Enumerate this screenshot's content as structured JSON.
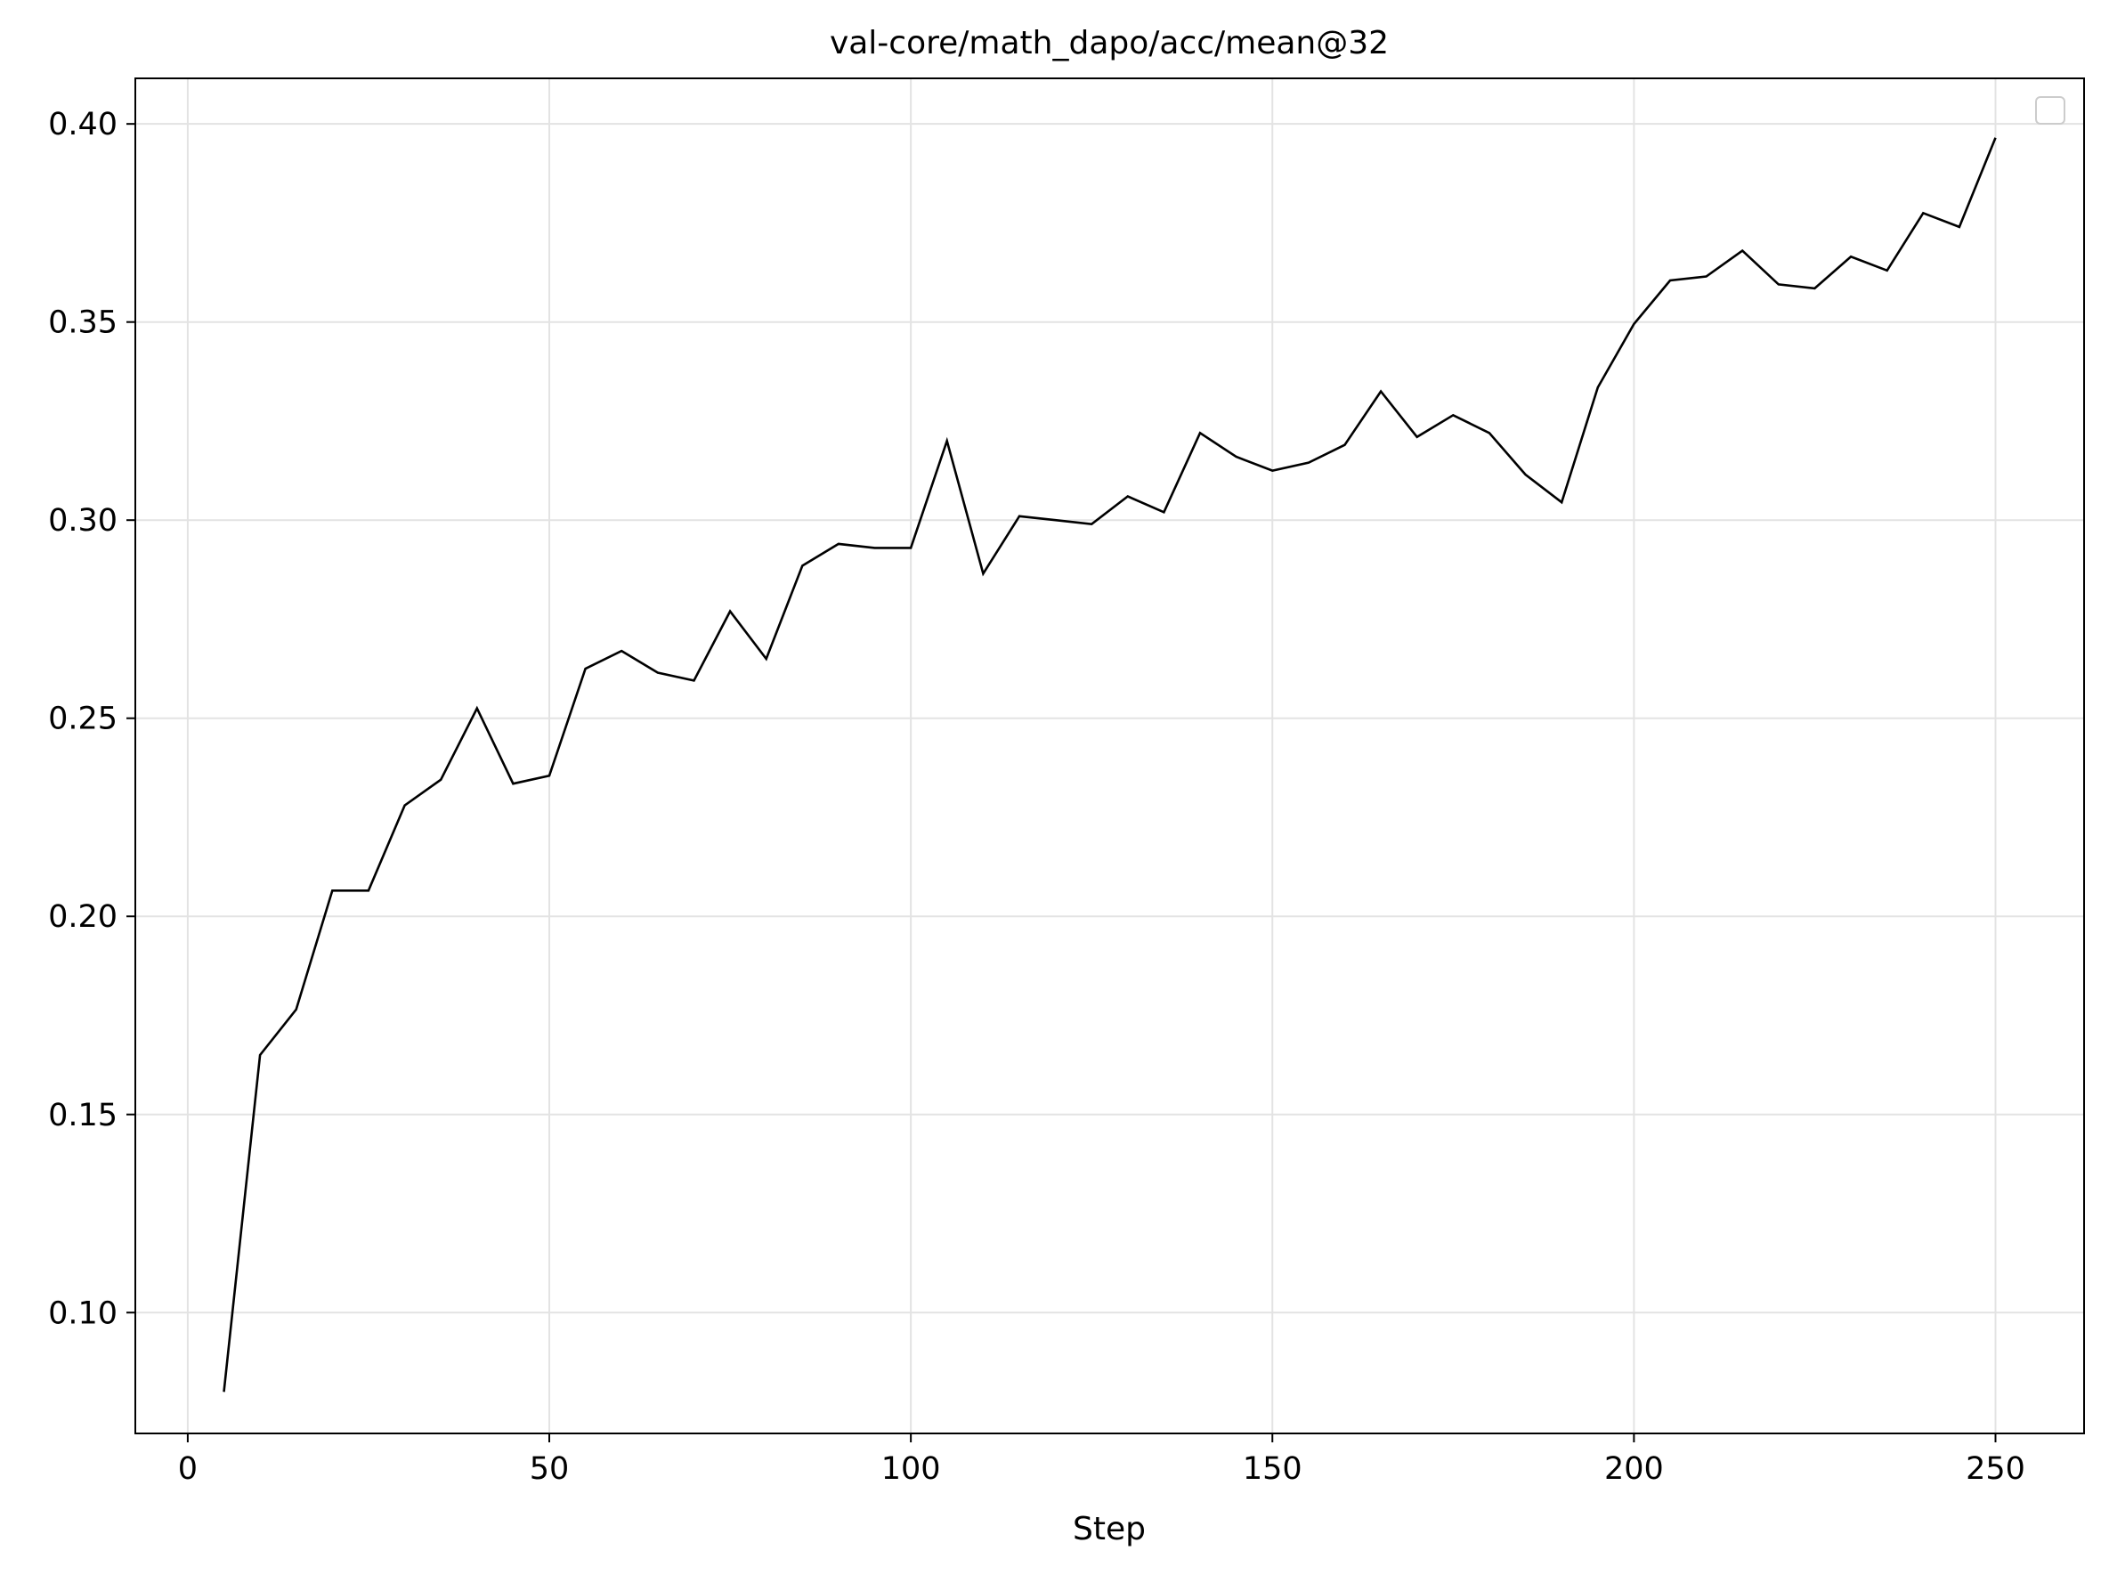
{
  "chart_data": {
    "type": "line",
    "title": "val-core/math_dapo/acc/mean@32",
    "xlabel": "Step",
    "ylabel": "",
    "xlim": [
      -7.25,
      262.25
    ],
    "ylim": [
      0.0695,
      0.4115
    ],
    "x_ticks": [
      0,
      50,
      100,
      150,
      200,
      250
    ],
    "x_tick_labels": [
      "0",
      "50",
      "100",
      "150",
      "200",
      "250"
    ],
    "y_ticks": [
      0.1,
      0.15,
      0.2,
      0.25,
      0.3,
      0.35,
      0.4
    ],
    "y_tick_labels": [
      "0.10",
      "0.15",
      "0.20",
      "0.25",
      "0.30",
      "0.35",
      "0.40"
    ],
    "grid": true,
    "legend": {
      "placement": "top-right",
      "entries": []
    },
    "colors": {
      "line": "#000000",
      "grid": "#e3e3e3",
      "axes": "#000000",
      "background": "#ffffff",
      "legend_border": "#cccccc"
    },
    "series": [
      {
        "x": [
          5,
          10,
          15,
          20,
          25,
          30,
          35,
          40,
          45,
          50,
          55,
          60,
          65,
          70,
          75,
          80,
          85,
          90,
          95,
          100,
          105,
          110,
          115,
          120,
          125,
          130,
          135,
          140,
          145,
          150,
          155,
          160,
          165,
          170,
          175,
          180,
          185,
          190,
          195,
          200,
          205,
          210,
          215,
          220,
          225,
          230,
          235,
          240,
          245,
          250
        ],
        "values": [
          0.08,
          0.165,
          0.1765,
          0.2065,
          0.2065,
          0.228,
          0.2345,
          0.2525,
          0.2335,
          0.2355,
          0.2625,
          0.267,
          0.2615,
          0.2595,
          0.277,
          0.265,
          0.2885,
          0.294,
          0.293,
          0.293,
          0.32,
          0.2865,
          0.301,
          0.3,
          0.299,
          0.306,
          0.302,
          0.322,
          0.316,
          0.3125,
          0.3145,
          0.319,
          0.3325,
          0.321,
          0.3265,
          0.322,
          0.3115,
          0.3045,
          0.3335,
          0.3495,
          0.3605,
          0.3615,
          0.368,
          0.3595,
          0.3585,
          0.3665,
          0.363,
          0.3775,
          0.374,
          0.3965
        ]
      }
    ]
  }
}
